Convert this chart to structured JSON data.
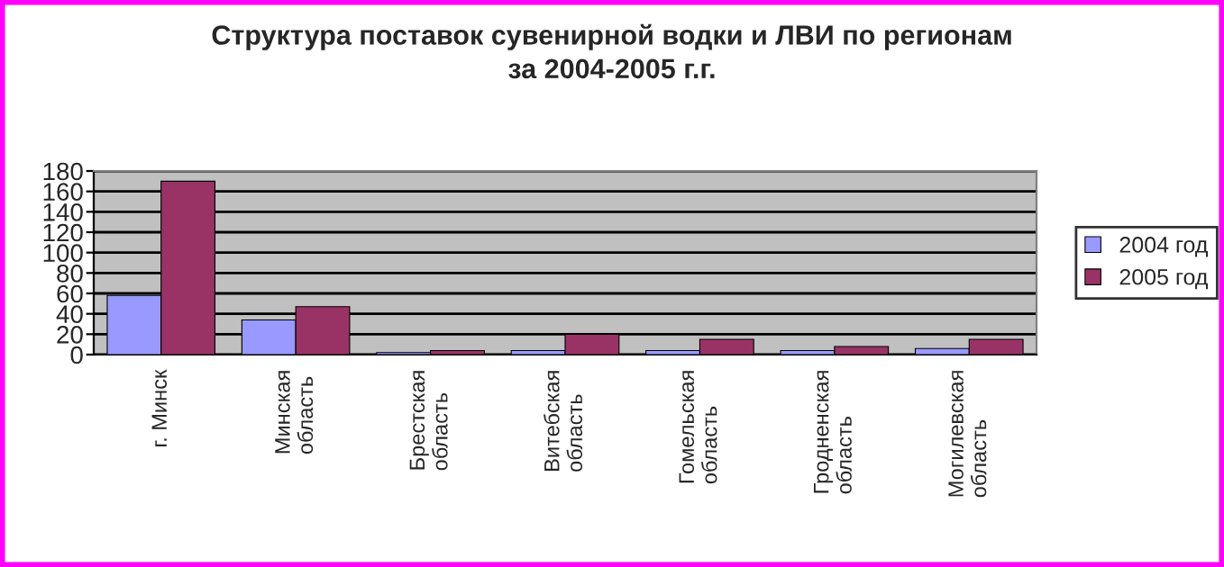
{
  "chart_data": {
    "type": "bar",
    "title": "Структура поставок сувенирной водки и ЛВИ по регионам\nза 2004-2005 г.г.",
    "categories": [
      "г. Минск",
      "Минская\nобласть",
      "Брестская\nобласть",
      "Витебская\nобласть",
      "Гомельская\nобласть",
      "Гродненская\nобласть",
      "Могилевская\nобласть"
    ],
    "series": [
      {
        "name": "2004 год",
        "color": "#9999ff",
        "values": [
          58,
          34,
          2,
          4,
          4,
          4,
          6
        ]
      },
      {
        "name": "2005 год",
        "color": "#993366",
        "values": [
          170,
          47,
          4,
          20,
          15,
          8,
          15
        ]
      }
    ],
    "ylim": [
      0,
      180
    ],
    "yticks": [
      0,
      20,
      40,
      60,
      80,
      100,
      120,
      140,
      160,
      180
    ],
    "grid": "y",
    "legend": "right"
  }
}
